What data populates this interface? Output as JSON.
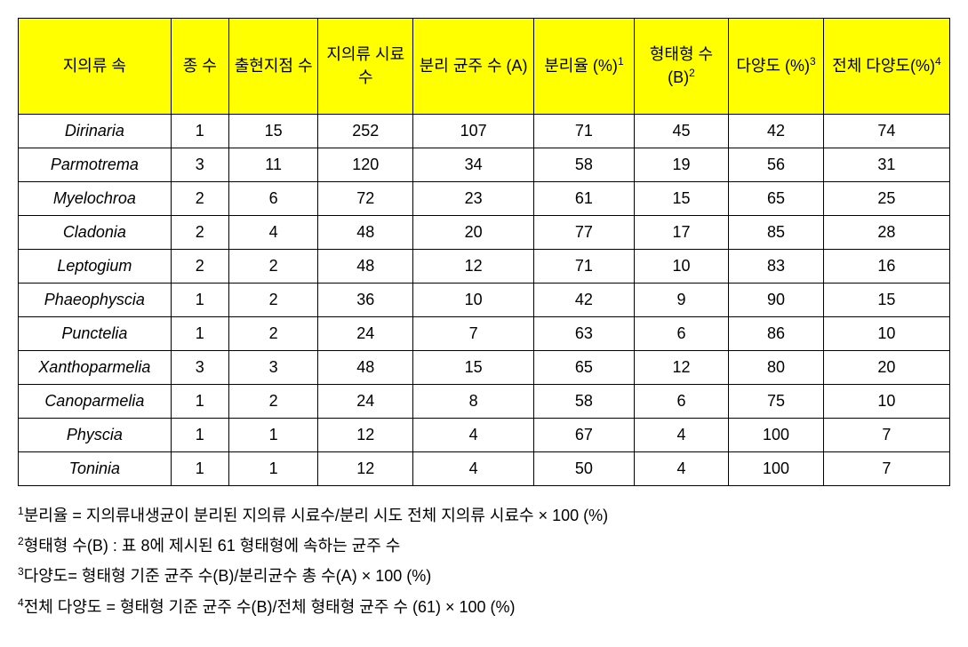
{
  "table": {
    "headers": {
      "genus": "지의류 속",
      "species": "종 수",
      "sites": "출현지점 수",
      "samples": "지의류 시료 수",
      "strains": "분리 균주 수 (A)",
      "isolation": "분리율 (%)",
      "isolation_sup": "1",
      "morphotype": "형태형 수(B)",
      "morphotype_sup": "2",
      "diversity": "다양도 (%)",
      "diversity_sup": "3",
      "totaldiv": "전체 다양도(%)",
      "totaldiv_sup": "4"
    },
    "rows": [
      {
        "genus": "Dirinaria",
        "species": "1",
        "sites": "15",
        "samples": "252",
        "strains": "107",
        "isolation": "71",
        "morphotype": "45",
        "diversity": "42",
        "totaldiv": "74"
      },
      {
        "genus": "Parmotrema",
        "species": "3",
        "sites": "11",
        "samples": "120",
        "strains": "34",
        "isolation": "58",
        "morphotype": "19",
        "diversity": "56",
        "totaldiv": "31"
      },
      {
        "genus": "Myelochroa",
        "species": "2",
        "sites": "6",
        "samples": "72",
        "strains": "23",
        "isolation": "61",
        "morphotype": "15",
        "diversity": "65",
        "totaldiv": "25"
      },
      {
        "genus": "Cladonia",
        "species": "2",
        "sites": "4",
        "samples": "48",
        "strains": "20",
        "isolation": "77",
        "morphotype": "17",
        "diversity": "85",
        "totaldiv": "28"
      },
      {
        "genus": "Leptogium",
        "species": "2",
        "sites": "2",
        "samples": "48",
        "strains": "12",
        "isolation": "71",
        "morphotype": "10",
        "diversity": "83",
        "totaldiv": "16"
      },
      {
        "genus": "Phaeophyscia",
        "species": "1",
        "sites": "2",
        "samples": "36",
        "strains": "10",
        "isolation": "42",
        "morphotype": "9",
        "diversity": "90",
        "totaldiv": "15"
      },
      {
        "genus": "Punctelia",
        "species": "1",
        "sites": "2",
        "samples": "24",
        "strains": "7",
        "isolation": "63",
        "morphotype": "6",
        "diversity": "86",
        "totaldiv": "10"
      },
      {
        "genus": "Xanthoparmelia",
        "species": "3",
        "sites": "3",
        "samples": "48",
        "strains": "15",
        "isolation": "65",
        "morphotype": "12",
        "diversity": "80",
        "totaldiv": "20"
      },
      {
        "genus": "Canoparmelia",
        "species": "1",
        "sites": "2",
        "samples": "24",
        "strains": "8",
        "isolation": "58",
        "morphotype": "6",
        "diversity": "75",
        "totaldiv": "10"
      },
      {
        "genus": "Physcia",
        "species": "1",
        "sites": "1",
        "samples": "12",
        "strains": "4",
        "isolation": "67",
        "morphotype": "4",
        "diversity": "100",
        "totaldiv": "7"
      },
      {
        "genus": "Toninia",
        "species": "1",
        "sites": "1",
        "samples": "12",
        "strains": "4",
        "isolation": "50",
        "morphotype": "4",
        "diversity": "100",
        "totaldiv": "7"
      }
    ]
  },
  "footnotes": {
    "n1_sup": "1",
    "n1_text": "분리율 = 지의류내생균이 분리된 지의류 시료수/분리 시도 전체 지의류 시료수 × 100 (%)",
    "n2_sup": "2",
    "n2_text": "형태형 수(B) : 표 8에 제시된 61 형태형에 속하는 균주 수",
    "n3_sup": "3",
    "n3_text": "다양도= 형태형 기준 균주 수(B)/분리균수 총 수(A) × 100 (%)",
    "n4_sup": "4",
    "n4_text": "전체 다양도 = 형태형 기준 균주 수(B)/전체 형태형 균주 수 (61) × 100 (%)"
  },
  "styling": {
    "header_bg": "#ffff00",
    "border_color": "#000000",
    "font_size_cell": 18,
    "font_size_sup": 12
  }
}
